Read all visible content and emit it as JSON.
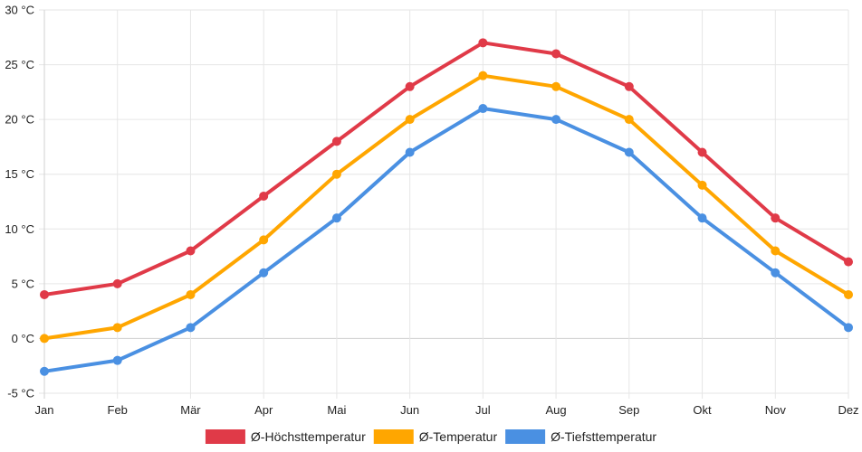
{
  "chart_data": {
    "type": "line",
    "title": "",
    "xlabel": "",
    "ylabel": "",
    "categories": [
      "Jan",
      "Feb",
      "Mär",
      "Apr",
      "Mai",
      "Jun",
      "Jul",
      "Aug",
      "Sep",
      "Okt",
      "Nov",
      "Dez"
    ],
    "y_unit": " °C",
    "ylim": [
      -5,
      30
    ],
    "y_ticks": [
      -5,
      0,
      5,
      10,
      15,
      20,
      25,
      30
    ],
    "y_tick_labels": [
      "-5 °C",
      "0 °C",
      "5 °C",
      "10 °C",
      "15 °C",
      "20 °C",
      "25 °C",
      "30 °C"
    ],
    "grid": true,
    "legend_position": "bottom",
    "series": [
      {
        "name": "Ø-Höchsttemperatur",
        "color": "#e03a48",
        "values": [
          4,
          5,
          8,
          13,
          18,
          23,
          27,
          26,
          23,
          17,
          11,
          7
        ]
      },
      {
        "name": "Ø-Temperatur",
        "color": "#ffa600",
        "values": [
          0,
          1,
          4,
          9,
          15,
          20,
          24,
          23,
          20,
          14,
          8,
          4
        ]
      },
      {
        "name": "Ø-Tiefsttemperatur",
        "color": "#4a90e2",
        "values": [
          -3,
          -2,
          1,
          6,
          11,
          17,
          21,
          20,
          17,
          11,
          6,
          1
        ]
      }
    ]
  }
}
